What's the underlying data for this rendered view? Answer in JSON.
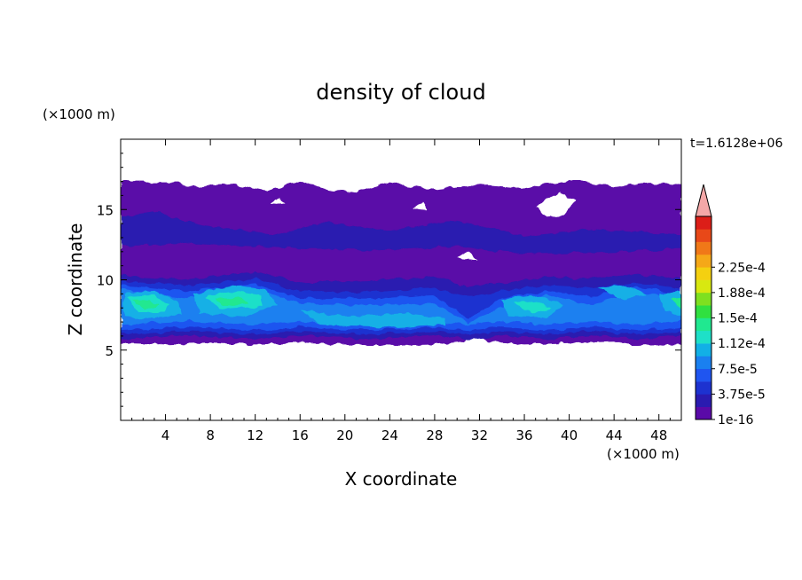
{
  "chart_data": {
    "type": "heatmap",
    "title": "density of cloud",
    "xlabel": "X coordinate",
    "ylabel": "Z coordinate",
    "x_unit": "(×1000 m)",
    "y_unit": "(×1000 m)",
    "time_label": "t=1.6128e+06",
    "xlim": [
      0,
      50
    ],
    "ylim": [
      0,
      20
    ],
    "x_ticks": [
      4,
      8,
      12,
      16,
      20,
      24,
      28,
      32,
      36,
      40,
      44,
      48
    ],
    "y_ticks": [
      5,
      10,
      15
    ],
    "colorbar": {
      "levels": [
        "1e-16",
        "3.75e-5",
        "7.5e-5",
        "1.12e-4",
        "1.5e-4",
        "1.88e-4",
        "2.25e-4"
      ],
      "colors": [
        "#5a0aa8",
        "#2a1bb0",
        "#1d32d0",
        "#1f55f0",
        "#1a80f0",
        "#12b0e6",
        "#1ee0c8",
        "#20e890",
        "#30e040",
        "#7ee020",
        "#d8e810",
        "#f4d010",
        "#f5a818",
        "#f07818",
        "#e84818",
        "#dc1e18"
      ],
      "extend_color": "#f4a8a8"
    },
    "field_description_ranges": {
      "cloud_base_km": 5.5,
      "main_layer_top_km": 10,
      "anvil_top_km": 17
    }
  }
}
